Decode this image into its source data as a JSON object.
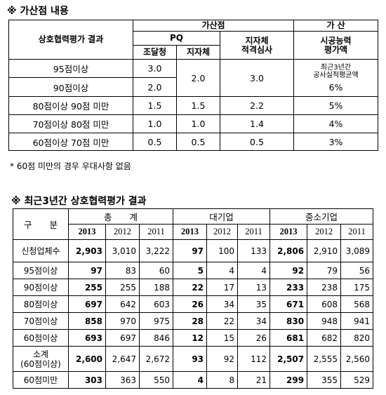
{
  "section1": {
    "heading": "※ 가산점 내용",
    "header": {
      "result_col": "상호협력평가 결과",
      "group": "가산점",
      "pq": "PQ",
      "procurement": "조달청",
      "local_gov": "지자체",
      "local_review_line1": "지자체",
      "local_review_line2": "적격심사",
      "bonus": "가 산",
      "construction_line1": "시공능력",
      "construction_line2": "평가액"
    },
    "rows": [
      {
        "label": "95점이상",
        "procurement": "3.0"
      },
      {
        "label": "90점이상",
        "procurement": "2.0"
      },
      {
        "label": "80점이상 90점 미만",
        "procurement": "1.5",
        "local_gov": "1.5",
        "review": "2.2",
        "bonus": "5%"
      },
      {
        "label": "70점이상 80점 미만",
        "procurement": "1.0",
        "local_gov": "1.0",
        "review": "1.4",
        "bonus": "4%"
      },
      {
        "label": "60점이상 70점 미만",
        "procurement": "0.5",
        "local_gov": "0.5",
        "review": "0.5",
        "bonus": "3%"
      }
    ],
    "merged_local_gov": "2.0",
    "merged_review": "3.0",
    "merged_bonus_line1": "최근3년간",
    "merged_bonus_line2": "공사실적평균액",
    "merged_bonus_value": "6%",
    "footnote": "* 60점 미만의 경우 우대사항 없음"
  },
  "section2": {
    "heading": "※ 최근3년간 상호협력평가 결과",
    "header": {
      "category": "구　　분",
      "total": "총　　계",
      "large": "대기업",
      "sme": "중소기업",
      "years": [
        "2013",
        "2012",
        "2011"
      ]
    },
    "rows": [
      {
        "label": "신청업체수",
        "values": [
          "2,903",
          "3,010",
          "3,222",
          "97",
          "100",
          "133",
          "2,806",
          "2,910",
          "3,089"
        ]
      },
      {
        "label": "95점이상",
        "values": [
          "97",
          "83",
          "60",
          "5",
          "4",
          "4",
          "92",
          "79",
          "56"
        ]
      },
      {
        "label": "90점이상",
        "values": [
          "255",
          "255",
          "188",
          "22",
          "17",
          "13",
          "233",
          "238",
          "175"
        ]
      },
      {
        "label": "80점이상",
        "values": [
          "697",
          "642",
          "603",
          "26",
          "34",
          "35",
          "671",
          "608",
          "568"
        ]
      },
      {
        "label": "70점이상",
        "values": [
          "858",
          "970",
          "975",
          "28",
          "22",
          "34",
          "830",
          "948",
          "941"
        ]
      },
      {
        "label": "60점이상",
        "values": [
          "693",
          "697",
          "846",
          "12",
          "15",
          "26",
          "681",
          "682",
          "820"
        ]
      },
      {
        "label_line1": "소계",
        "label_line2": "(60점이상)",
        "values": [
          "2,600",
          "2,647",
          "2,672",
          "93",
          "92",
          "112",
          "2,507",
          "2,555",
          "2,560"
        ]
      },
      {
        "label": "60점미만",
        "values": [
          "303",
          "363",
          "550",
          "4",
          "8",
          "21",
          "299",
          "355",
          "529"
        ]
      }
    ]
  }
}
